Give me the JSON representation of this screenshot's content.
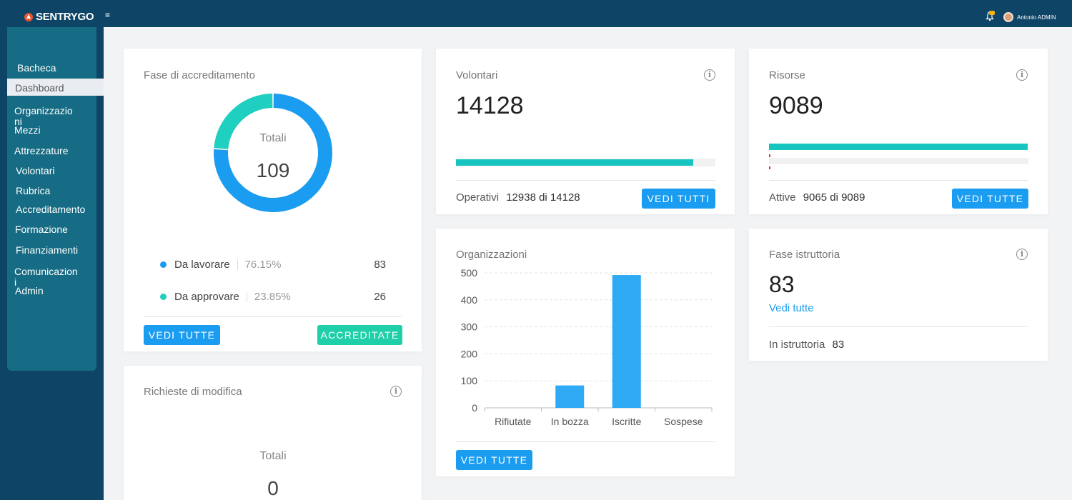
{
  "app": {
    "logo_text": "SENTRYGO",
    "menu_icon": "≡",
    "user_name": "Antonio ADMIN"
  },
  "colors": {
    "topbar": "#0e4466",
    "sidebar": "#166c84",
    "accent_blue": "#1a9cf0",
    "accent_teal": "#1fcfa9",
    "bar_fill": "#17c5c0"
  },
  "sidebar": {
    "items": [
      {
        "label": "Bacheca"
      },
      {
        "label": "Dashboard"
      },
      {
        "label": "Organizzazio\nni"
      },
      {
        "label": "Mezzi"
      },
      {
        "label": "Attrezzature"
      },
      {
        "label": "Volontari"
      },
      {
        "label": "Rubrica"
      },
      {
        "label": "Accreditamento"
      },
      {
        "label": "Formazione"
      },
      {
        "label": "Finanziamenti"
      },
      {
        "label": "Comunicazion\ni"
      },
      {
        "label": "Admin"
      }
    ]
  },
  "accreditamento": {
    "title": "Fase di accreditamento",
    "total_label": "Totali",
    "total": "109",
    "rows": [
      {
        "label": "Da lavorare",
        "pct": "76.15%",
        "count": "83",
        "color": "#1a9cf0",
        "value": 76.15
      },
      {
        "label": "Da approvare",
        "pct": "23.85%",
        "count": "26",
        "color": "#1fcfc0",
        "value": 23.85
      }
    ],
    "btn_all": "VEDI TUTTE",
    "btn_accredit": "ACCREDITATE"
  },
  "richieste": {
    "title": "Richieste di modifica",
    "total_label": "Totali",
    "total": "0"
  },
  "volontari": {
    "title": "Volontari",
    "value": "14128",
    "progress": 0.9158,
    "label": "Operativi",
    "detail": "12938 di 14128",
    "button": "VEDI TUTTI"
  },
  "risorse": {
    "title": "Risorse",
    "value": "9089",
    "progress": 0.9974,
    "label": "Attive",
    "detail": "9065 di 9089",
    "button": "VEDI TUTTE"
  },
  "organizzazioni": {
    "title": "Organizzazioni",
    "button": "VEDI TUTTE"
  },
  "istruttoria": {
    "title": "Fase istruttoria",
    "value": "83",
    "link": "Vedi tutte",
    "label": "In istruttoria",
    "detail": "83"
  },
  "chart_data": {
    "type": "bar",
    "categories": [
      "Rifiutate",
      "In bozza",
      "Iscritte",
      "Sospese"
    ],
    "values": [
      0,
      83,
      492,
      0
    ],
    "ylim": [
      0,
      500
    ],
    "yticks": [
      0,
      100,
      200,
      300,
      400,
      500
    ],
    "grid": true,
    "color": "#2eaaf5"
  }
}
